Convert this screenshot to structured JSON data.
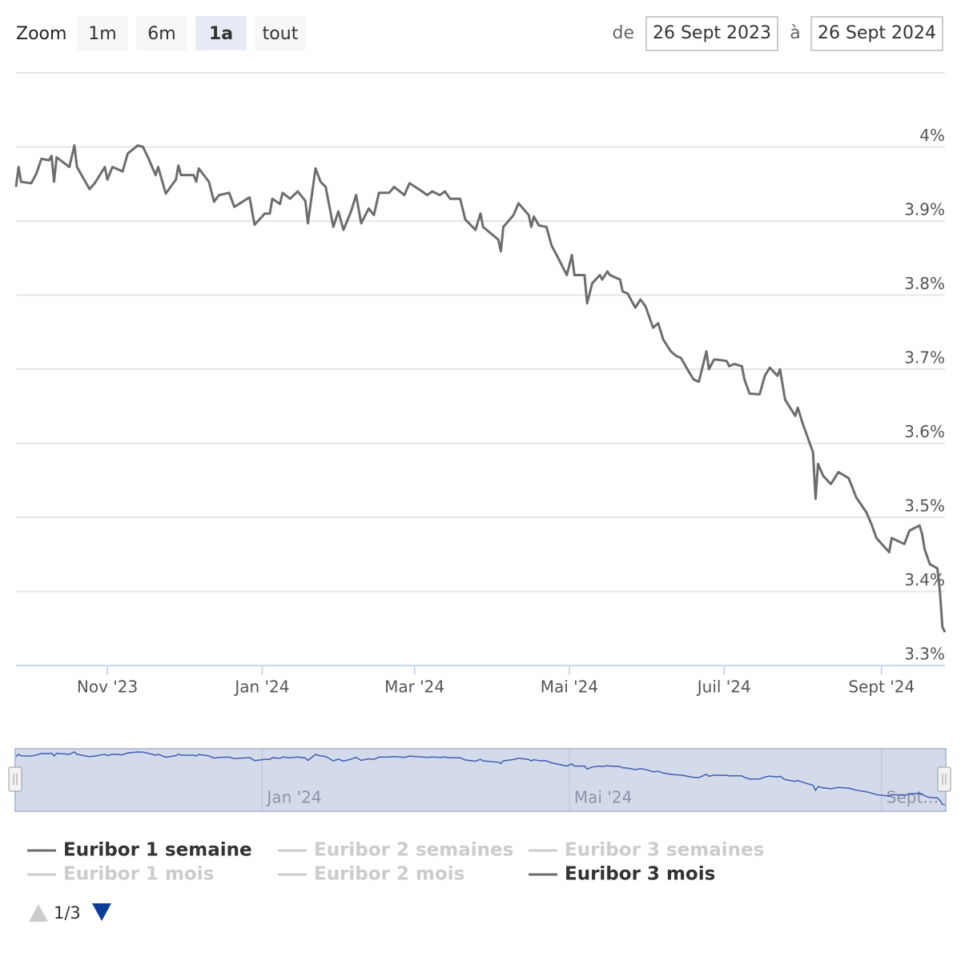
{
  "chart_data": {
    "type": "line",
    "range_selector": {
      "zoom_label": "Zoom",
      "buttons": [
        "1m",
        "6m",
        "1a",
        "tout"
      ],
      "selected_button": 2,
      "from_label": "de",
      "from": "26 Sept 2023",
      "to_label": "à",
      "to": "26 Sept 2024"
    },
    "x": [
      "2023-09-26",
      "2023-09-27",
      "2023-09-28",
      "2023-10-02",
      "2023-10-04",
      "2023-10-06",
      "2023-10-09",
      "2023-10-10",
      "2023-10-11",
      "2023-10-12",
      "2023-10-17",
      "2023-10-19",
      "2023-10-20",
      "2023-10-25",
      "2023-10-27",
      "2023-10-31",
      "2023-11-01",
      "2023-11-03",
      "2023-11-07",
      "2023-11-09",
      "2023-11-13",
      "2023-11-15",
      "2023-11-17",
      "2023-11-20",
      "2023-11-21",
      "2023-11-24",
      "2023-11-28",
      "2023-11-29",
      "2023-11-30",
      "2023-12-05",
      "2023-12-06",
      "2023-12-07",
      "2023-12-11",
      "2023-12-13",
      "2023-12-15",
      "2023-12-19",
      "2023-12-21",
      "2023-12-27",
      "2023-12-29",
      "2024-01-02",
      "2024-01-04",
      "2024-01-05",
      "2024-01-08",
      "2024-01-09",
      "2024-01-12",
      "2024-01-15",
      "2024-01-18",
      "2024-01-19",
      "2024-01-22",
      "2024-01-24",
      "2024-01-26",
      "2024-01-29",
      "2024-01-31",
      "2024-02-02",
      "2024-02-05",
      "2024-02-07",
      "2024-02-09",
      "2024-02-12",
      "2024-02-14",
      "2024-02-16",
      "2024-02-20",
      "2024-02-22",
      "2024-02-26",
      "2024-02-28",
      "2024-03-04",
      "2024-03-06",
      "2024-03-08",
      "2024-03-11",
      "2024-03-13",
      "2024-03-15",
      "2024-03-19",
      "2024-03-21",
      "2024-03-25",
      "2024-03-27",
      "2024-03-28",
      "2024-04-03",
      "2024-04-04",
      "2024-04-05",
      "2024-04-09",
      "2024-04-11",
      "2024-04-15",
      "2024-04-16",
      "2024-04-17",
      "2024-04-19",
      "2024-04-22",
      "2024-04-24",
      "2024-04-26",
      "2024-04-30",
      "2024-05-02",
      "2024-05-03",
      "2024-05-07",
      "2024-05-08",
      "2024-05-10",
      "2024-05-13",
      "2024-05-14",
      "2024-05-16",
      "2024-05-17",
      "2024-05-21",
      "2024-05-22",
      "2024-05-24",
      "2024-05-27",
      "2024-05-29",
      "2024-05-31",
      "2024-06-03",
      "2024-06-05",
      "2024-06-07",
      "2024-06-10",
      "2024-06-12",
      "2024-06-14",
      "2024-06-17",
      "2024-06-19",
      "2024-06-21",
      "2024-06-24",
      "2024-06-25",
      "2024-06-27",
      "2024-06-28",
      "2024-07-02",
      "2024-07-03",
      "2024-07-05",
      "2024-07-08",
      "2024-07-09",
      "2024-07-11",
      "2024-07-15",
      "2024-07-17",
      "2024-07-19",
      "2024-07-22",
      "2024-07-23",
      "2024-07-25",
      "2024-07-29",
      "2024-07-30",
      "2024-08-01",
      "2024-08-05",
      "2024-08-06",
      "2024-08-07",
      "2024-08-09",
      "2024-08-12",
      "2024-08-13",
      "2024-08-15",
      "2024-08-19",
      "2024-08-20",
      "2024-08-22",
      "2024-08-26",
      "2024-08-28",
      "2024-08-30",
      "2024-09-04",
      "2024-09-05",
      "2024-09-10",
      "2024-09-12",
      "2024-09-16",
      "2024-09-17",
      "2024-09-18",
      "2024-09-20",
      "2024-09-23",
      "2024-09-24",
      "2024-09-25",
      "2024-09-26"
    ],
    "series": [
      {
        "name": "Euribor 3 mois",
        "color": "#6d6d6d",
        "values": [
          3.946,
          3.973,
          3.953,
          3.951,
          3.964,
          3.984,
          3.982,
          3.988,
          3.953,
          3.986,
          3.973,
          4.002,
          3.973,
          3.943,
          3.951,
          3.973,
          3.956,
          3.973,
          3.967,
          3.991,
          4.002,
          4.0,
          3.986,
          3.962,
          3.973,
          3.937,
          3.956,
          3.975,
          3.962,
          3.962,
          3.953,
          3.971,
          3.953,
          3.926,
          3.935,
          3.938,
          3.919,
          3.932,
          3.895,
          3.91,
          3.91,
          3.93,
          3.923,
          3.938,
          3.93,
          3.94,
          3.927,
          3.897,
          3.971,
          3.953,
          3.946,
          3.892,
          3.913,
          3.888,
          3.913,
          3.935,
          3.897,
          3.917,
          3.908,
          3.938,
          3.938,
          3.946,
          3.935,
          3.951,
          3.94,
          3.935,
          3.94,
          3.935,
          3.94,
          3.93,
          3.93,
          3.902,
          3.888,
          3.91,
          3.892,
          3.875,
          3.859,
          3.892,
          3.908,
          3.924,
          3.908,
          3.892,
          3.906,
          3.894,
          3.892,
          3.867,
          3.854,
          3.827,
          3.854,
          3.827,
          3.827,
          3.789,
          3.816,
          3.827,
          3.821,
          3.832,
          3.827,
          3.821,
          3.805,
          3.802,
          3.783,
          3.794,
          3.785,
          3.756,
          3.762,
          3.74,
          3.724,
          3.718,
          3.715,
          3.697,
          3.686,
          3.683,
          3.724,
          3.7,
          3.713,
          3.713,
          3.711,
          3.704,
          3.707,
          3.704,
          3.686,
          3.667,
          3.666,
          3.691,
          3.702,
          3.691,
          3.7,
          3.659,
          3.637,
          3.648,
          3.626,
          3.588,
          3.525,
          3.572,
          3.556,
          3.545,
          3.55,
          3.561,
          3.553,
          3.545,
          3.527,
          3.507,
          3.491,
          3.472,
          3.453,
          3.472,
          3.464,
          3.482,
          3.489,
          3.477,
          3.457,
          3.437,
          3.431,
          3.399,
          3.352,
          3.345
        ]
      }
    ],
    "xlim": [
      "2023-09-26",
      "2024-09-26"
    ],
    "xticks": [
      {
        "value": "2023-11-01",
        "label": "Nov '23"
      },
      {
        "value": "2024-01-01",
        "label": "Jan '24"
      },
      {
        "value": "2024-03-01",
        "label": "Mar '24"
      },
      {
        "value": "2024-05-01",
        "label": "Mai '24"
      },
      {
        "value": "2024-07-01",
        "label": "Juil '24"
      },
      {
        "value": "2024-09-01",
        "label": "Sept '24"
      }
    ],
    "ylim": [
      3.3,
      4.1
    ],
    "yticks": [
      {
        "value": 3.3,
        "label": "3.3%"
      },
      {
        "value": 3.4,
        "label": "3.4%"
      },
      {
        "value": 3.5,
        "label": "3.5%"
      },
      {
        "value": 3.6,
        "label": "3.6%"
      },
      {
        "value": 3.7,
        "label": "3.7%"
      },
      {
        "value": 3.8,
        "label": "3.8%"
      },
      {
        "value": 3.9,
        "label": "3.9%"
      },
      {
        "value": 4.0,
        "label": "4%"
      }
    ],
    "grid": true,
    "navigator": {
      "color": "#3d5fb0",
      "fill": "#d3dbeb",
      "xticks": [
        {
          "value": "2024-01-01",
          "label": "Jan '24"
        },
        {
          "value": "2024-05-01",
          "label": "Mai '24"
        },
        {
          "value": "2024-09-01",
          "label": "Sept…"
        }
      ]
    },
    "legend_entries": [
      {
        "name": "Euribor 1 semaine",
        "active": true
      },
      {
        "name": "Euribor 2 semaines",
        "active": false
      },
      {
        "name": "Euribor 3 semaines",
        "active": false
      },
      {
        "name": "Euribor 1 mois",
        "active": false
      },
      {
        "name": "Euribor 2 mois",
        "active": false
      }
    ],
    "legend_page": "1/3"
  }
}
